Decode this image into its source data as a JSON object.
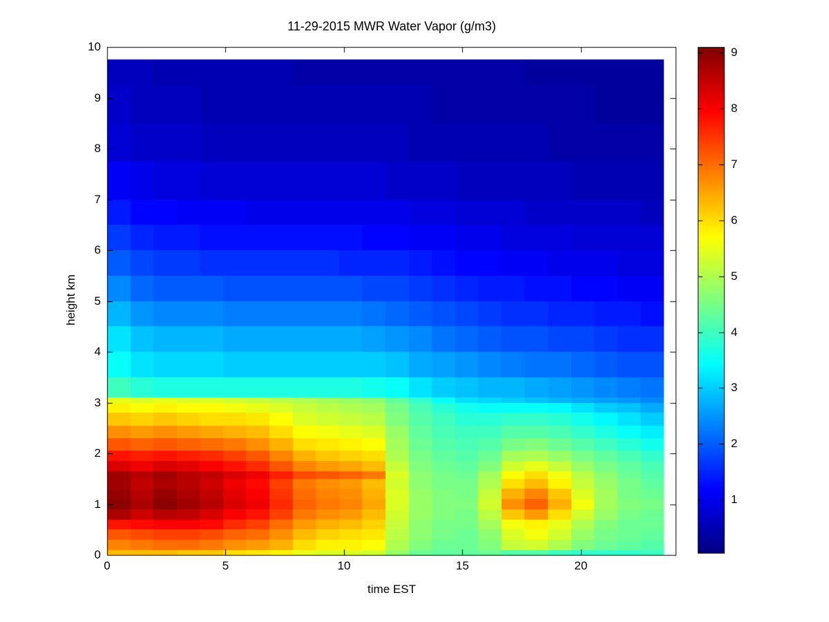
{
  "figure": {
    "background": "#ffffff",
    "axis_color": "#000000",
    "text_color": "#000000"
  },
  "chart_data": {
    "type": "heatmap",
    "title": "11-29-2015 MWR Water Vapor (g/m3)",
    "xlabel": "time EST",
    "ylabel": "height km",
    "units": "g/m3",
    "colormap": "jet",
    "grid": false,
    "xlim": [
      0,
      24
    ],
    "ylim": [
      0,
      10
    ],
    "clim": [
      0.05,
      9.1
    ],
    "xticks": [
      0,
      5,
      10,
      15,
      20
    ],
    "yticks": [
      0,
      1,
      2,
      3,
      4,
      5,
      6,
      7,
      8,
      9,
      10
    ],
    "colorbar_ticks": [
      1,
      2,
      3,
      4,
      5,
      6,
      7,
      8,
      9
    ],
    "x_hours": [
      0,
      1,
      2,
      3,
      4,
      5,
      6,
      7,
      8,
      9,
      10,
      11,
      12,
      13,
      14,
      15,
      16,
      17,
      18,
      19,
      20,
      21,
      22,
      23
    ],
    "x_data_range": [
      0,
      23.5
    ],
    "y_data_top": 9.75,
    "row_order": "bottom-to-top",
    "y_edges_km": [
      0,
      0.1,
      0.3,
      0.5,
      0.7,
      0.9,
      1.1,
      1.3,
      1.5,
      1.65,
      1.85,
      2.05,
      2.3,
      2.55,
      2.8,
      3.0,
      3.1,
      3.5,
      4.0,
      4.5,
      5.0,
      5.5,
      6.0,
      6.5,
      7.0,
      7.75,
      8.5,
      9.25,
      9.75
    ],
    "values": [
      [
        6.3,
        6.3,
        6.3,
        6.2,
        6.2,
        6.0,
        5.9,
        5.8,
        5.5,
        5.4,
        5.4,
        5.3,
        4.8,
        4.4,
        4.3,
        4.3,
        4.4,
        4.2,
        4.2,
        4.0,
        3.9,
        3.9,
        3.9,
        4.0
      ],
      [
        6.8,
        6.9,
        7.0,
        7.0,
        6.9,
        6.7,
        6.6,
        6.4,
        6.0,
        5.8,
        5.8,
        5.7,
        5.0,
        4.6,
        4.4,
        4.4,
        4.6,
        5.2,
        5.3,
        5.0,
        4.6,
        4.4,
        4.3,
        4.2
      ],
      [
        7.2,
        7.3,
        7.4,
        7.4,
        7.3,
        7.1,
        7.0,
        6.7,
        6.3,
        6.1,
        6.0,
        5.9,
        5.1,
        4.7,
        4.5,
        4.4,
        4.7,
        5.4,
        5.6,
        5.3,
        4.8,
        4.5,
        4.4,
        4.3
      ],
      [
        7.8,
        7.9,
        8.0,
        8.0,
        7.9,
        7.6,
        7.4,
        7.0,
        6.6,
        6.4,
        6.3,
        6.1,
        5.2,
        4.7,
        4.5,
        4.5,
        4.9,
        5.6,
        5.8,
        5.5,
        5.0,
        4.6,
        4.4,
        4.4
      ],
      [
        8.7,
        8.4,
        8.6,
        8.5,
        8.3,
        8.0,
        7.8,
        7.4,
        6.9,
        6.7,
        6.6,
        6.3,
        5.3,
        4.8,
        4.6,
        4.5,
        5.1,
        6.2,
        6.6,
        6.0,
        5.3,
        4.8,
        4.5,
        4.4
      ],
      [
        9.0,
        8.7,
        9.0,
        8.8,
        8.6,
        8.3,
        8.1,
        7.6,
        7.1,
        6.9,
        6.8,
        6.5,
        5.4,
        4.8,
        4.6,
        4.6,
        5.3,
        6.7,
        7.1,
        6.4,
        5.6,
        4.9,
        4.6,
        4.5
      ],
      [
        8.9,
        8.6,
        8.9,
        8.7,
        8.5,
        8.2,
        8.0,
        7.5,
        7.0,
        6.8,
        6.7,
        6.4,
        5.4,
        4.8,
        4.6,
        4.5,
        5.2,
        6.4,
        6.8,
        6.2,
        5.4,
        4.9,
        4.5,
        4.4
      ],
      [
        8.8,
        8.5,
        8.7,
        8.6,
        8.4,
        8.1,
        7.9,
        7.4,
        6.9,
        6.7,
        6.6,
        6.3,
        5.3,
        4.7,
        4.5,
        4.5,
        5.0,
        6.0,
        6.3,
        5.8,
        5.2,
        4.8,
        4.5,
        4.3
      ],
      [
        8.8,
        8.6,
        8.8,
        8.6,
        8.5,
        8.3,
        8.1,
        7.7,
        7.3,
        7.2,
        7.1,
        6.9,
        5.4,
        4.7,
        4.5,
        4.4,
        4.9,
        5.7,
        6.0,
        5.6,
        5.1,
        4.7,
        4.4,
        4.2
      ],
      [
        8.3,
        8.1,
        8.3,
        8.2,
        8.0,
        7.8,
        7.6,
        7.2,
        6.8,
        6.6,
        6.5,
        6.3,
        5.2,
        4.6,
        4.4,
        4.3,
        4.6,
        5.3,
        5.5,
        5.2,
        4.8,
        4.5,
        4.3,
        4.1
      ],
      [
        7.8,
        7.7,
        7.8,
        7.7,
        7.6,
        7.4,
        7.2,
        6.8,
        6.4,
        6.2,
        6.1,
        6.0,
        5.0,
        4.5,
        4.3,
        4.2,
        4.4,
        4.9,
        5.0,
        4.8,
        4.5,
        4.3,
        4.1,
        3.9
      ],
      [
        7.2,
        7.1,
        7.2,
        7.1,
        7.0,
        6.9,
        6.7,
        6.4,
        6.0,
        5.9,
        5.8,
        5.7,
        4.9,
        4.4,
        4.2,
        4.1,
        4.2,
        4.5,
        4.6,
        4.4,
        4.2,
        4.0,
        3.8,
        3.6
      ],
      [
        6.7,
        6.6,
        6.7,
        6.6,
        6.5,
        6.4,
        6.3,
        6.0,
        5.7,
        5.6,
        5.5,
        5.4,
        4.8,
        4.3,
        4.1,
        4.0,
        4.0,
        4.2,
        4.2,
        4.1,
        3.9,
        3.7,
        3.5,
        3.3
      ],
      [
        6.2,
        6.1,
        6.2,
        6.1,
        6.0,
        6.0,
        5.9,
        5.7,
        5.4,
        5.3,
        5.2,
        5.1,
        4.6,
        4.2,
        4.0,
        3.8,
        3.8,
        3.9,
        3.9,
        3.8,
        3.6,
        3.4,
        3.2,
        3.0
      ],
      [
        5.8,
        5.7,
        5.8,
        5.7,
        5.7,
        5.6,
        5.5,
        5.4,
        5.2,
        5.1,
        5.0,
        4.9,
        4.5,
        4.1,
        3.8,
        3.6,
        3.5,
        3.5,
        3.5,
        3.4,
        3.2,
        3.0,
        2.9,
        2.7
      ],
      [
        5.5,
        5.4,
        5.5,
        5.4,
        5.4,
        5.3,
        5.2,
        5.1,
        5.0,
        4.9,
        4.8,
        4.7,
        4.3,
        3.9,
        3.5,
        3.2,
        3.1,
        3.0,
        2.9,
        2.8,
        2.7,
        2.6,
        2.5,
        2.4
      ],
      [
        4.0,
        3.8,
        3.7,
        3.7,
        3.7,
        3.7,
        3.7,
        3.7,
        3.7,
        3.7,
        3.7,
        3.6,
        3.5,
        3.2,
        3.0,
        2.9,
        2.8,
        2.8,
        2.7,
        2.6,
        2.5,
        2.4,
        2.3,
        2.2
      ],
      [
        3.5,
        3.2,
        3.1,
        3.1,
        3.1,
        3.0,
        3.0,
        3.0,
        3.0,
        3.0,
        3.0,
        3.0,
        2.9,
        2.7,
        2.6,
        2.5,
        2.4,
        2.3,
        2.2,
        2.2,
        2.1,
        2.0,
        1.9,
        1.9
      ],
      [
        3.2,
        2.9,
        2.8,
        2.8,
        2.8,
        2.7,
        2.7,
        2.7,
        2.7,
        2.7,
        2.7,
        2.6,
        2.5,
        2.4,
        2.2,
        2.1,
        2.0,
        1.9,
        1.9,
        1.8,
        1.8,
        1.7,
        1.6,
        1.6
      ],
      [
        2.8,
        2.5,
        2.4,
        2.4,
        2.4,
        2.3,
        2.3,
        2.3,
        2.3,
        2.3,
        2.3,
        2.2,
        2.1,
        2.0,
        1.9,
        1.8,
        1.7,
        1.6,
        1.6,
        1.5,
        1.5,
        1.4,
        1.4,
        1.3
      ],
      [
        2.4,
        2.1,
        2.0,
        2.0,
        2.0,
        1.9,
        1.9,
        1.9,
        1.9,
        1.9,
        1.9,
        1.8,
        1.8,
        1.7,
        1.6,
        1.5,
        1.4,
        1.4,
        1.3,
        1.3,
        1.2,
        1.2,
        1.1,
        1.1
      ],
      [
        2.0,
        1.8,
        1.7,
        1.7,
        1.6,
        1.6,
        1.6,
        1.6,
        1.6,
        1.6,
        1.5,
        1.5,
        1.5,
        1.4,
        1.3,
        1.2,
        1.2,
        1.1,
        1.1,
        1.0,
        1.0,
        1.0,
        0.9,
        0.9
      ],
      [
        1.7,
        1.5,
        1.4,
        1.4,
        1.3,
        1.3,
        1.3,
        1.3,
        1.3,
        1.3,
        1.3,
        1.2,
        1.2,
        1.1,
        1.1,
        1.0,
        1.0,
        0.9,
        0.9,
        0.9,
        0.8,
        0.8,
        0.8,
        0.8
      ],
      [
        1.4,
        1.2,
        1.2,
        1.1,
        1.1,
        1.1,
        1.0,
        1.0,
        1.0,
        1.0,
        1.0,
        1.0,
        1.0,
        0.9,
        0.9,
        0.8,
        0.8,
        0.8,
        0.7,
        0.7,
        0.7,
        0.7,
        0.7,
        0.6
      ],
      [
        1.1,
        1.0,
        0.9,
        0.9,
        0.8,
        0.8,
        0.8,
        0.8,
        0.8,
        0.8,
        0.8,
        0.8,
        0.7,
        0.7,
        0.7,
        0.6,
        0.6,
        0.6,
        0.6,
        0.6,
        0.5,
        0.5,
        0.5,
        0.5
      ],
      [
        0.8,
        0.7,
        0.7,
        0.7,
        0.6,
        0.6,
        0.6,
        0.6,
        0.6,
        0.6,
        0.6,
        0.6,
        0.6,
        0.5,
        0.5,
        0.5,
        0.5,
        0.5,
        0.5,
        0.4,
        0.4,
        0.4,
        0.4,
        0.4
      ],
      [
        0.7,
        0.6,
        0.6,
        0.6,
        0.5,
        0.5,
        0.5,
        0.5,
        0.5,
        0.5,
        0.5,
        0.5,
        0.5,
        0.5,
        0.4,
        0.4,
        0.4,
        0.4,
        0.4,
        0.4,
        0.4,
        0.3,
        0.3,
        0.3
      ],
      [
        0.6,
        0.6,
        0.5,
        0.5,
        0.5,
        0.5,
        0.5,
        0.5,
        0.4,
        0.4,
        0.4,
        0.4,
        0.4,
        0.4,
        0.4,
        0.4,
        0.4,
        0.4,
        0.3,
        0.3,
        0.3,
        0.3,
        0.3,
        0.3
      ]
    ]
  }
}
